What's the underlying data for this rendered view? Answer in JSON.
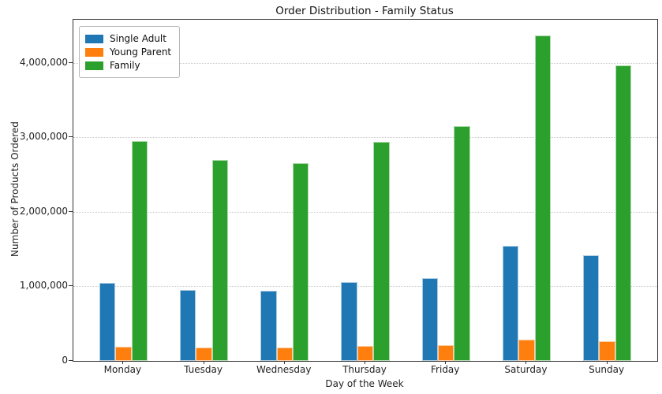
{
  "chart_data": {
    "type": "bar",
    "title": "Order Distribution - Family Status",
    "xlabel": "Day of the Week",
    "ylabel": "Number of Products Ordered",
    "categories": [
      "Monday",
      "Tuesday",
      "Wednesday",
      "Thursday",
      "Friday",
      "Saturday",
      "Sunday"
    ],
    "series": [
      {
        "name": "Single Adult",
        "color": "#1f77b4",
        "values": [
          1050000,
          955000,
          940000,
          1060000,
          1110000,
          1545000,
          1420000
        ]
      },
      {
        "name": "Young Parent",
        "color": "#ff7f0e",
        "values": [
          195000,
          175000,
          180000,
          198000,
          212000,
          290000,
          265000
        ]
      },
      {
        "name": "Family",
        "color": "#2ca02c",
        "values": [
          2955000,
          2700000,
          2660000,
          2940000,
          3155000,
          4370000,
          3965000
        ]
      }
    ],
    "ylim": [
      0,
      4580000
    ],
    "yticks": [
      {
        "value": 0,
        "label": "0"
      },
      {
        "value": 1000000,
        "label": "1,000,000"
      },
      {
        "value": 2000000,
        "label": "2,000,000"
      },
      {
        "value": 3000000,
        "label": "3,000,000"
      },
      {
        "value": 4000000,
        "label": "4,000,000"
      }
    ],
    "grid": "horizontal-dotted",
    "legend_position": "upper-left",
    "bar_group_width_units": 0.6,
    "bar_width_units": 0.2
  }
}
